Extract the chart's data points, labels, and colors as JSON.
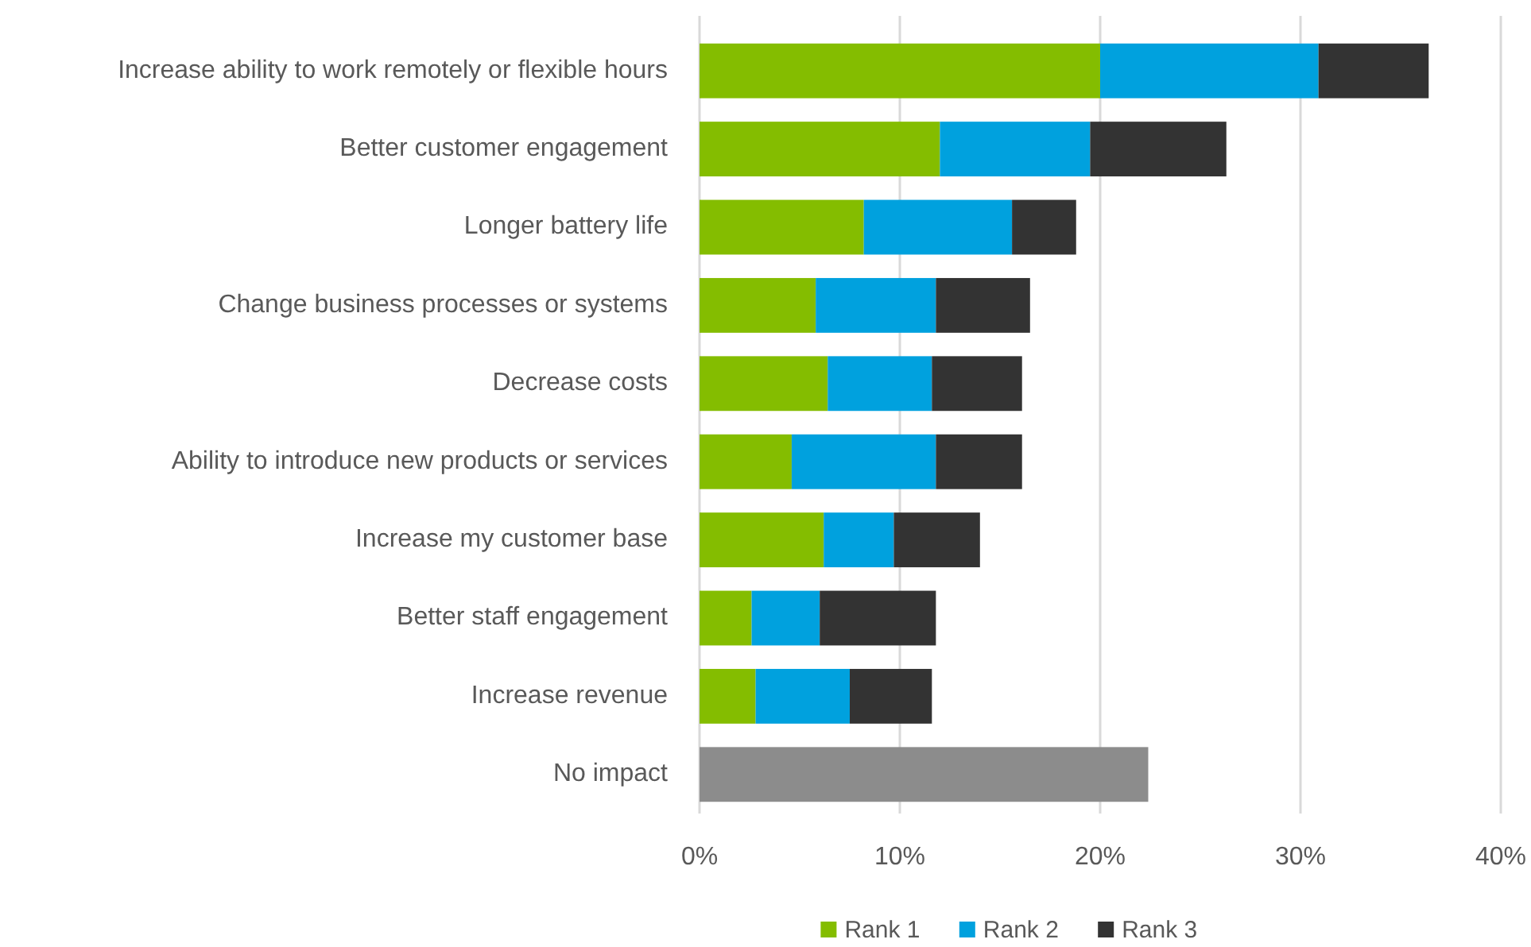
{
  "chart_data": {
    "type": "bar",
    "orientation": "horizontal",
    "stacked": true,
    "categories": [
      "Increase ability to work remotely or flexible hours",
      "Better customer engagement",
      "Longer battery life",
      "Change business processes or systems",
      "Decrease costs",
      "Ability to introduce new products or services",
      "Increase my customer base",
      "Better staff engagement",
      "Increase revenue",
      "No impact"
    ],
    "series": [
      {
        "name": "Rank 1",
        "color": "#84bd00",
        "values": [
          20.0,
          12.0,
          8.2,
          5.8,
          6.4,
          4.6,
          6.2,
          2.6,
          2.8,
          null
        ]
      },
      {
        "name": "Rank 2",
        "color": "#00a1de",
        "values": [
          10.9,
          7.5,
          7.4,
          6.0,
          5.2,
          7.2,
          3.5,
          3.4,
          4.7,
          null
        ]
      },
      {
        "name": "Rank 3",
        "color": "#333333",
        "values": [
          5.5,
          6.8,
          3.2,
          4.7,
          4.5,
          4.3,
          4.3,
          5.8,
          4.1,
          null
        ]
      },
      {
        "color": "#8c8c8c",
        "values": [
          null,
          null,
          null,
          null,
          null,
          null,
          null,
          null,
          null,
          22.4
        ]
      }
    ],
    "xlim": [
      0,
      40
    ],
    "xticks": [
      {
        "value": 0,
        "label": "0%"
      },
      {
        "value": 10,
        "label": "10%"
      },
      {
        "value": 20,
        "label": "20%"
      },
      {
        "value": 30,
        "label": "30%"
      },
      {
        "value": 40,
        "label": "40%"
      }
    ],
    "grid": "x",
    "legend": "bottom"
  }
}
